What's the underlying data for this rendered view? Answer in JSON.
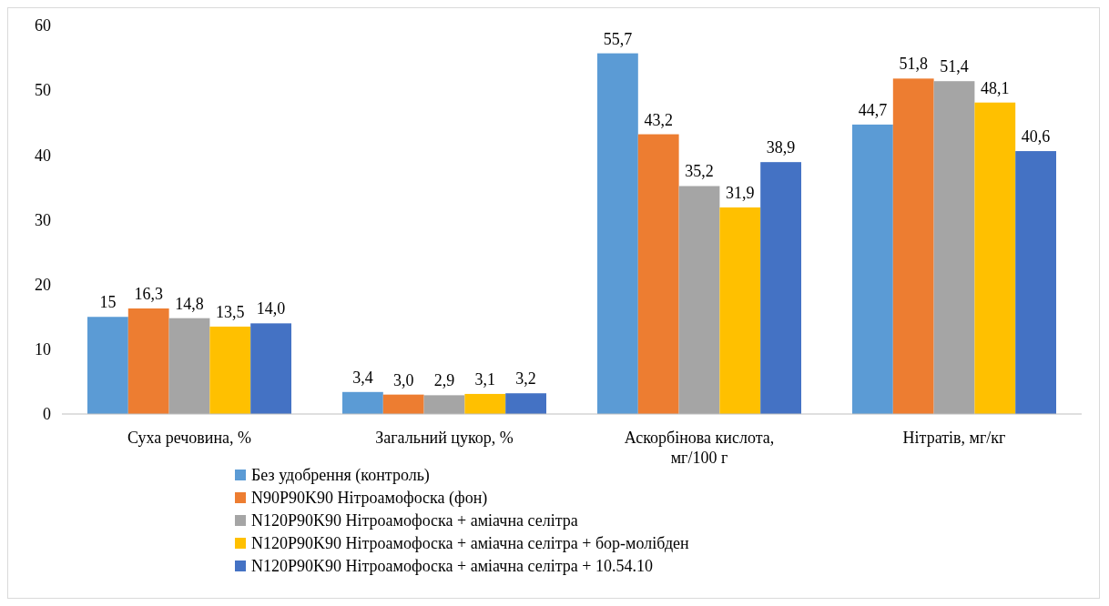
{
  "chart_data": {
    "type": "bar",
    "categories": [
      "Суха речовина, %",
      "Загальний цукор, %",
      "Аскорбінова кислота, мг/100 г",
      "Нітратів, мг/кг"
    ],
    "series": [
      {
        "name": "Без удобрення (контроль)",
        "color": "#5b9bd5",
        "values": [
          15,
          3.4,
          55.7,
          44.7
        ],
        "value_labels": [
          "15",
          "3,4",
          "55,7",
          "44,7"
        ]
      },
      {
        "name": "N90P90K90  Нітроамофоска (фон)",
        "color": "#ed7d31",
        "values": [
          16.3,
          3.0,
          43.2,
          51.8
        ],
        "value_labels": [
          "16,3",
          "3,0",
          "43,2",
          "51,8"
        ]
      },
      {
        "name": "N120P90K90  Нітроамофоска + аміачна селітра",
        "color": "#a5a5a5",
        "values": [
          14.8,
          2.9,
          35.2,
          51.4
        ],
        "value_labels": [
          "14,8",
          "2,9",
          "35,2",
          "51,4"
        ]
      },
      {
        "name": "N120P90K90  Нітроамофоска + аміачна селітра + бор-молібден",
        "color": "#ffc000",
        "values": [
          13.5,
          3.1,
          31.9,
          48.1
        ],
        "value_labels": [
          "13,5",
          "3,1",
          "31,9",
          "48,1"
        ]
      },
      {
        "name": "N120P90K90  Нітроамофоска + аміачна селітра + 10.54.10",
        "color": "#4472c4",
        "values": [
          14.0,
          3.2,
          38.9,
          40.6
        ],
        "value_labels": [
          "14,0",
          "3,2",
          "38,9",
          "40,6"
        ]
      }
    ],
    "ylim": [
      0,
      60
    ],
    "yticks": [
      0,
      10,
      20,
      30,
      40,
      50,
      60
    ],
    "grid": false,
    "legend": "bottom"
  }
}
